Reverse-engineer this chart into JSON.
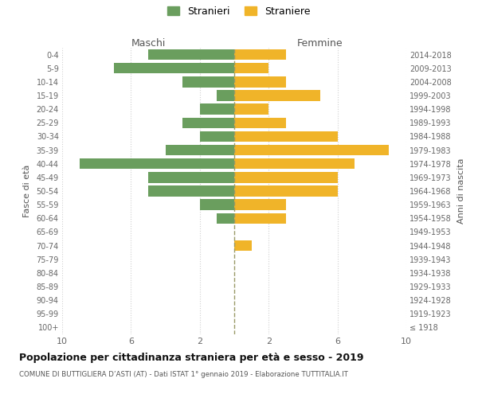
{
  "age_groups": [
    "100+",
    "95-99",
    "90-94",
    "85-89",
    "80-84",
    "75-79",
    "70-74",
    "65-69",
    "60-64",
    "55-59",
    "50-54",
    "45-49",
    "40-44",
    "35-39",
    "30-34",
    "25-29",
    "20-24",
    "15-19",
    "10-14",
    "5-9",
    "0-4"
  ],
  "birth_years": [
    "≤ 1918",
    "1919-1923",
    "1924-1928",
    "1929-1933",
    "1934-1938",
    "1939-1943",
    "1944-1948",
    "1949-1953",
    "1954-1958",
    "1959-1963",
    "1964-1968",
    "1969-1973",
    "1974-1978",
    "1979-1983",
    "1984-1988",
    "1989-1993",
    "1994-1998",
    "1999-2003",
    "2004-2008",
    "2009-2013",
    "2014-2018"
  ],
  "males": [
    0,
    0,
    0,
    0,
    0,
    0,
    0,
    0,
    1,
    2,
    5,
    5,
    9,
    4,
    2,
    3,
    2,
    1,
    3,
    7,
    5
  ],
  "females": [
    0,
    0,
    0,
    0,
    0,
    0,
    1,
    0,
    3,
    3,
    6,
    6,
    7,
    9,
    6,
    3,
    2,
    5,
    3,
    2,
    3
  ],
  "male_color": "#6a9e5e",
  "female_color": "#f0b429",
  "background_color": "#ffffff",
  "grid_color": "#d0d0d0",
  "dashed_line_color": "#999966",
  "title": "Popolazione per cittadinanza straniera per età e sesso - 2019",
  "subtitle": "COMUNE DI BUTTIGLIERA D’ASTI (AT) - Dati ISTAT 1° gennaio 2019 - Elaborazione TUTTITALIA.IT",
  "legend_stranieri": "Stranieri",
  "legend_straniere": "Straniere",
  "xlabel_left": "Maschi",
  "xlabel_right": "Femmine",
  "ylabel_left": "Fasce di età",
  "ylabel_right": "Anni di nascita",
  "xlim": 10,
  "xtick_positions": [
    -10,
    -6,
    -2,
    2,
    6,
    10
  ],
  "xtick_labels": [
    "10",
    "6",
    "2",
    "2",
    "6",
    "10"
  ]
}
